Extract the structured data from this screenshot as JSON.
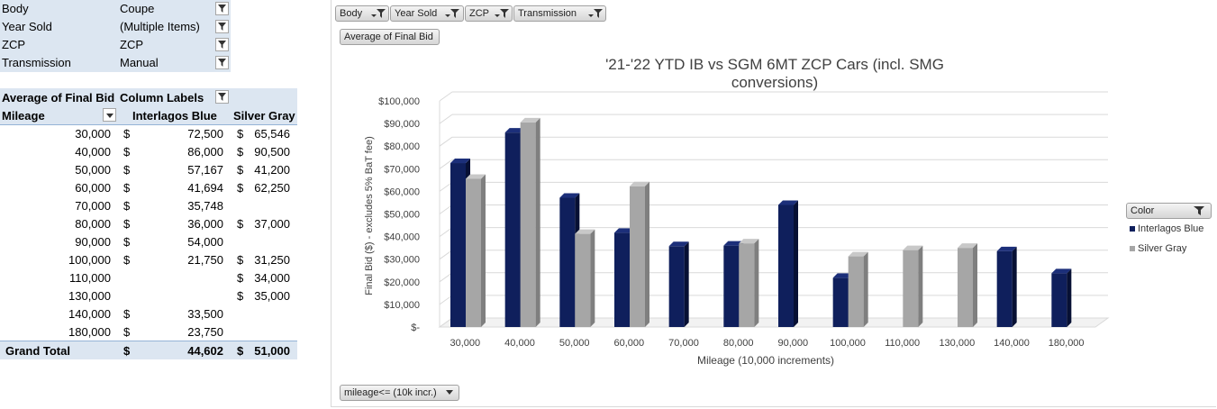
{
  "report_filters": [
    {
      "name": "Body",
      "value": "Coupe"
    },
    {
      "name": "Year Sold",
      "value": "(Multiple Items)"
    },
    {
      "name": "ZCP",
      "value": "ZCP"
    },
    {
      "name": "Transmission",
      "value": "Manual"
    }
  ],
  "pivot": {
    "value_label": "Average of Final Bid",
    "column_labels": "Column Labels",
    "row_field": "Mileage",
    "columns": [
      "Interlagos Blue",
      "Silver Gray"
    ],
    "currency": "$",
    "rows": [
      {
        "mileage": "30,000",
        "ib": "72,500",
        "sg": "65,546"
      },
      {
        "mileage": "40,000",
        "ib": "86,000",
        "sg": "90,500"
      },
      {
        "mileage": "50,000",
        "ib": "57,167",
        "sg": "41,200"
      },
      {
        "mileage": "60,000",
        "ib": "41,694",
        "sg": "62,250"
      },
      {
        "mileage": "70,000",
        "ib": "35,748",
        "sg": ""
      },
      {
        "mileage": "80,000",
        "ib": "36,000",
        "sg": "37,000"
      },
      {
        "mileage": "90,000",
        "ib": "54,000",
        "sg": ""
      },
      {
        "mileage": "100,000",
        "ib": "21,750",
        "sg": "31,250"
      },
      {
        "mileage": "110,000",
        "ib": "",
        "sg": "34,000"
      },
      {
        "mileage": "130,000",
        "ib": "",
        "sg": "35,000"
      },
      {
        "mileage": "140,000",
        "ib": "33,500",
        "sg": ""
      },
      {
        "mileage": "180,000",
        "ib": "23,750",
        "sg": ""
      }
    ],
    "grand_total": {
      "label": "Grand Total",
      "ib": "44,602",
      "sg": "51,000"
    }
  },
  "chart_buttons": {
    "filters": [
      "Body",
      "Year Sold",
      "ZCP",
      "Transmission"
    ],
    "value_button": "Average of Final Bid",
    "axis_button": "mileage<= (10k incr.)",
    "legend_button": "Color"
  },
  "colors": {
    "interlagos_blue": "#0f1f5c",
    "silver_gray": "#a6a6a6",
    "header_fill": "#dce6f1"
  },
  "chart_data": {
    "type": "bar",
    "title": "'21-'22 YTD IB vs SGM 6MT ZCP Cars (incl. SMG conversions)",
    "xlabel": "Mileage (10,000 increments)",
    "ylabel": "Final Bid ($) - excludes 5% BaT fee)",
    "ylim": [
      0,
      100000
    ],
    "yticks": [
      "$-",
      "$10,000",
      "$20,000",
      "$30,000",
      "$40,000",
      "$50,000",
      "$60,000",
      "$70,000",
      "$80,000",
      "$90,000",
      "$100,000"
    ],
    "categories": [
      "30,000",
      "40,000",
      "50,000",
      "60,000",
      "70,000",
      "80,000",
      "90,000",
      "100,000",
      "110,000",
      "130,000",
      "140,000",
      "180,000"
    ],
    "series": [
      {
        "name": "Interlagos Blue",
        "color": "#0f1f5c",
        "values": [
          72500,
          86000,
          57167,
          41694,
          35748,
          36000,
          54000,
          21750,
          null,
          null,
          33500,
          23750
        ]
      },
      {
        "name": "Silver Gray",
        "color": "#a6a6a6",
        "values": [
          65546,
          90500,
          41200,
          62250,
          null,
          37000,
          null,
          31250,
          34000,
          35000,
          null,
          null
        ]
      }
    ],
    "grid": true,
    "legend": "right"
  }
}
